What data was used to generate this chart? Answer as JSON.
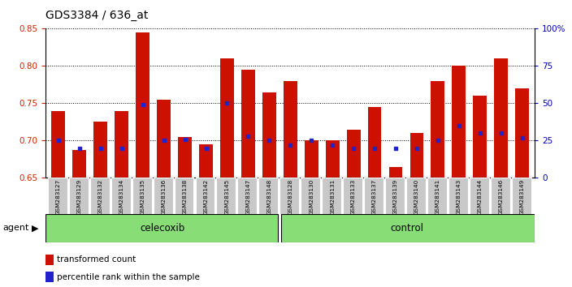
{
  "title": "GDS3384 / 636_at",
  "samples": [
    "GSM283127",
    "GSM283129",
    "GSM283132",
    "GSM283134",
    "GSM283135",
    "GSM283136",
    "GSM283138",
    "GSM283142",
    "GSM283145",
    "GSM283147",
    "GSM283148",
    "GSM283128",
    "GSM283130",
    "GSM283131",
    "GSM283133",
    "GSM283137",
    "GSM283139",
    "GSM283140",
    "GSM283141",
    "GSM283143",
    "GSM283144",
    "GSM283146",
    "GSM283149"
  ],
  "bar_values": [
    0.74,
    0.688,
    0.725,
    0.74,
    0.845,
    0.755,
    0.705,
    0.695,
    0.81,
    0.795,
    0.765,
    0.78,
    0.7,
    0.7,
    0.715,
    0.745,
    0.665,
    0.71,
    0.78,
    0.8,
    0.76,
    0.81,
    0.77
  ],
  "percentile_rank": [
    25,
    20,
    20,
    20,
    49,
    25,
    26,
    20,
    50,
    28,
    25,
    22,
    25,
    22,
    20,
    20,
    20,
    20,
    25,
    35,
    30,
    30,
    27
  ],
  "celecoxib_count": 11,
  "control_count": 12,
  "ylim_left": [
    0.65,
    0.85
  ],
  "ylim_right": [
    0,
    100
  ],
  "yticks_left": [
    0.65,
    0.7,
    0.75,
    0.8,
    0.85
  ],
  "yticks_right": [
    0,
    25,
    50,
    75,
    100
  ],
  "ytick_labels_right": [
    "0",
    "25",
    "50",
    "75",
    "100%"
  ],
  "bar_color": "#CC1100",
  "marker_color": "#2222CC",
  "celecoxib_color": "#88DD77",
  "control_color": "#88DD77",
  "agent_label": "agent",
  "celecoxib_label": "celecoxib",
  "control_label": "control",
  "legend_bar_label": "transformed count",
  "legend_marker_label": "percentile rank within the sample",
  "bar_width": 0.65
}
